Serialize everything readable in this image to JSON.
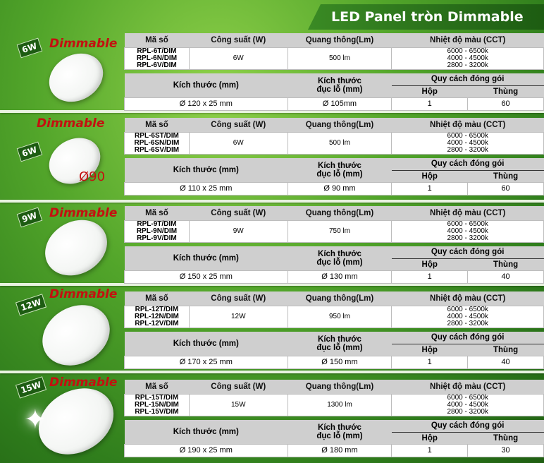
{
  "title": "LED Panel tròn Dimmable",
  "headers": {
    "ma_so": "Mã số",
    "cong_suat": "Công suất (W)",
    "quang_thong": "Quang thông(Lm)",
    "nhiet_do": "Nhiệt độ màu (CCT)",
    "kich_thuoc": "Kích thước (mm)",
    "kich_thuoc_lo_1": "Kích thước",
    "kich_thuoc_lo_2": "đục lỗ (mm)",
    "quy_cach": "Quy cách đóng gói",
    "hop": "Hộp",
    "thung": "Thùng"
  },
  "dimmable_label": "Dimmable",
  "cutout_label": "Ø90",
  "products": [
    {
      "badge": "6W",
      "codes": [
        "RPL-6T/DIM",
        "RPL-6N/DIM",
        "RPL-6V/DIM"
      ],
      "power": "6W",
      "lumen": "500 lm",
      "cct": [
        "6000 - 6500k",
        "4000 - 4500k",
        "2800 - 3200k"
      ],
      "size": "Ø 120 x 25 mm",
      "hole": "Ø 105mm",
      "hop": "1",
      "thung": "60"
    },
    {
      "badge": "6W",
      "codes": [
        "RPL-6ST/DIM",
        "RPL-6SN/DIM",
        "RPL-6SV/DIM"
      ],
      "power": "6W",
      "lumen": "500 lm",
      "cct": [
        "6000 - 6500k",
        "4000 - 4500k",
        "2800 - 3200k"
      ],
      "size": "Ø 110 x 25 mm",
      "hole": "Ø 90 mm",
      "hop": "1",
      "thung": "60"
    },
    {
      "badge": "9W",
      "codes": [
        "RPL-9T/DIM",
        "RPL-9N/DIM",
        "RPL-9V/DIM"
      ],
      "power": "9W",
      "lumen": "750 lm",
      "cct": [
        "6000 - 6500k",
        "4000 - 4500k",
        "2800 - 3200k"
      ],
      "size": "Ø 150 x 25 mm",
      "hole": "Ø 130 mm",
      "hop": "1",
      "thung": "40"
    },
    {
      "badge": "12W",
      "codes": [
        "RPL-12T/DIM",
        "RPL-12N/DIM",
        "RPL-12V/DIM"
      ],
      "power": "12W",
      "lumen": "950 lm",
      "cct": [
        "6000 - 6500k",
        "4000 - 4500k",
        "2800 - 3200k"
      ],
      "size": "Ø 170 x 25 mm",
      "hole": "Ø 150 mm",
      "hop": "1",
      "thung": "40"
    },
    {
      "badge": "15W",
      "codes": [
        "RPL-15T/DIM",
        "RPL-15N/DIM",
        "RPL-15V/DIM"
      ],
      "power": "15W",
      "lumen": "1300 lm",
      "cct": [
        "6000 - 6500k",
        "4000 - 4500k",
        "2800 - 3200k"
      ],
      "size": "Ø 190 x 25 mm",
      "hole": "Ø 180 mm",
      "hop": "1",
      "thung": "30"
    }
  ]
}
